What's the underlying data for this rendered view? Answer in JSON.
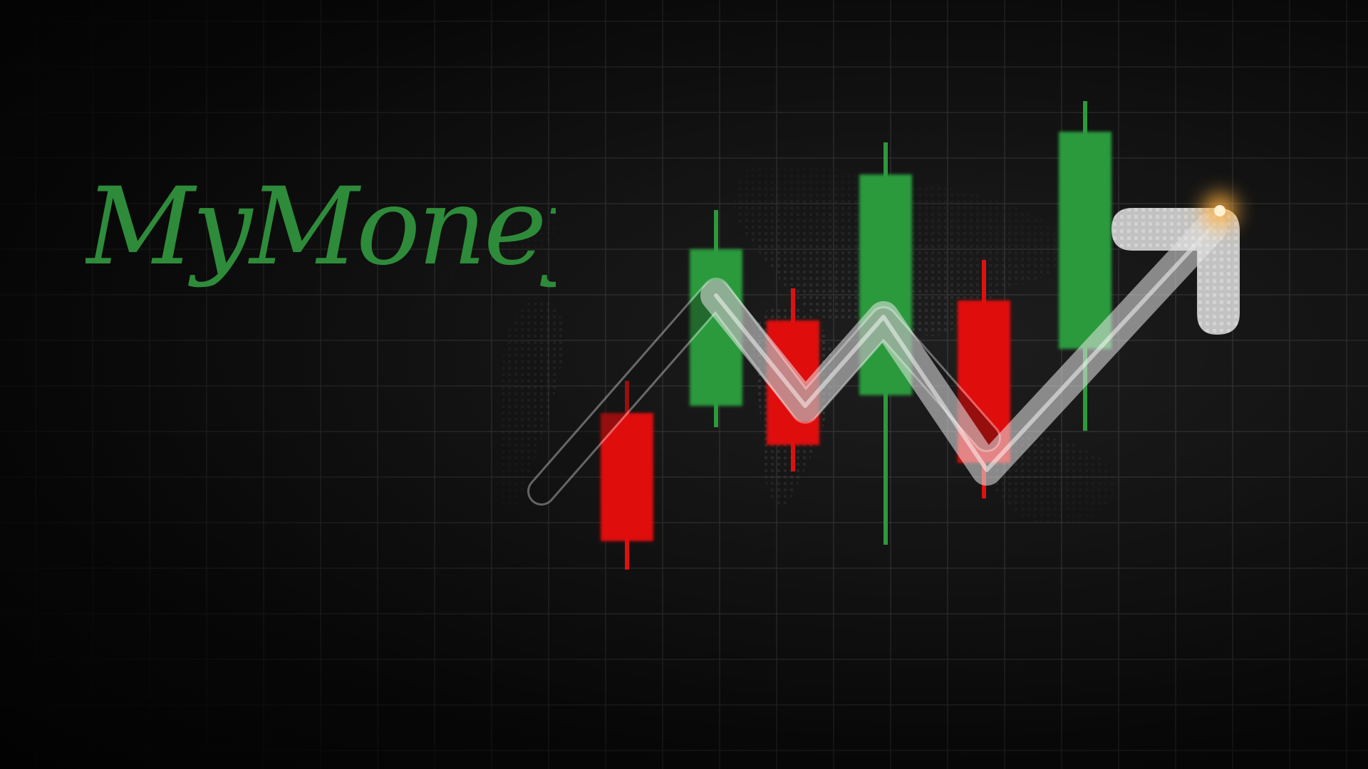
{
  "brand": {
    "logo_text": "MyMoney",
    "logo_color": "#2e8b3a"
  },
  "candles": [
    {
      "direction": "down",
      "color": "#e01010"
    },
    {
      "direction": "up",
      "color": "#2c9a3c"
    },
    {
      "direction": "down",
      "color": "#e01010"
    },
    {
      "direction": "up",
      "color": "#2c9a3c"
    },
    {
      "direction": "down",
      "color": "#e01010"
    },
    {
      "direction": "up",
      "color": "#2c9a3c"
    }
  ],
  "trend_arrow": {
    "direction": "up",
    "color": "#e8e8e8",
    "glow_color": "#ffb040"
  },
  "background": {
    "color": "#0b0b0b",
    "grid": true,
    "grid_color": "#3a3a3a",
    "world_map_texture": true
  }
}
